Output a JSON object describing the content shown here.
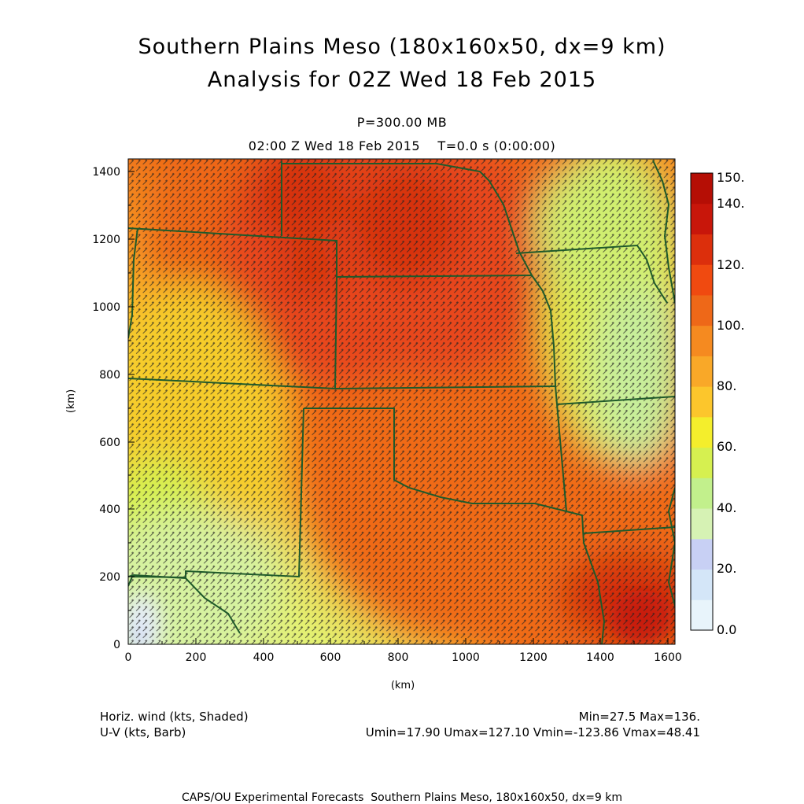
{
  "header": {
    "title_line1": "Southern Plains Meso (180x160x50, dx=9 km)",
    "title_line2": "Analysis for 02Z Wed 18 Feb 2015",
    "level": "P=300.00 MB",
    "time": "02:00 Z Wed 18 Feb 2015    T=0.0 s (0:00:00)"
  },
  "axes": {
    "x_unit": "(km)",
    "y_unit": "(km)",
    "x_ticks": [
      "0",
      "200",
      "400",
      "600",
      "800",
      "1000",
      "1200",
      "1400",
      "1600"
    ],
    "y_ticks": [
      "0",
      "200",
      "400",
      "600",
      "800",
      "1000",
      "1200",
      "1400"
    ],
    "x_range": [
      0,
      1620
    ],
    "y_range": [
      0,
      1440
    ]
  },
  "colorbar": {
    "labels": [
      "150.",
      "140.",
      "120.",
      "100.",
      "80.",
      "60.",
      "40.",
      "20.",
      "0.0"
    ],
    "colors": [
      "#b50e05",
      "#c8160a",
      "#dc2f0c",
      "#f04a10",
      "#ee6818",
      "#f58a20",
      "#f9a828",
      "#fcc62c",
      "#f4ee2c",
      "#d6f050",
      "#c2f08c",
      "#d6f2b4",
      "#c8d0f4",
      "#d4e6f8",
      "#e8f4fb"
    ]
  },
  "stats": {
    "field1_label": "Horiz. wind (kts, Shaded)",
    "field2_label": "U-V (kts, Barb)",
    "minmax": "Min=27.5 Max=136.",
    "uv_range": "Umin=17.90 Umax=127.10 Vmin=-123.86 Vmax=48.41"
  },
  "footer": "CAPS/OU Experimental Forecasts  Southern Plains Meso, 180x160x50, dx=9 km",
  "colors": {
    "border": "#1f5a2a",
    "barb": "#111111"
  }
}
